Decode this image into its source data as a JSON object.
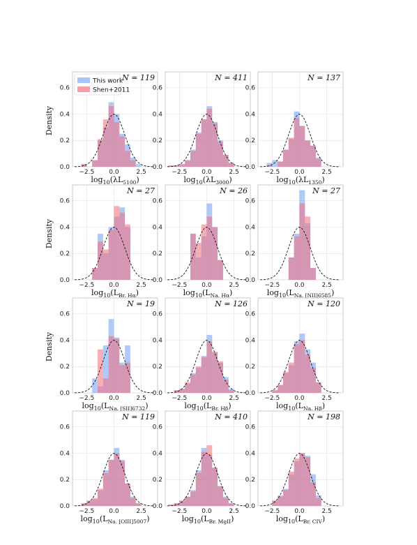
{
  "figure": {
    "ylabel": "Density",
    "legend": {
      "placement": "top-left of first panel",
      "entries": [
        {
          "label": "This work",
          "color": "#7aa6f0"
        },
        {
          "label": "Shen+2011",
          "color": "#f26b7a"
        }
      ]
    },
    "curve_style": "dashed black standard normal"
  },
  "chart_data": [
    {
      "type": "histogram",
      "n_label": "N = 119",
      "xlabel": "log10(λL5100)",
      "xlim": [
        -3.8,
        4
      ],
      "ylim": [
        0,
        0.72
      ],
      "xticks": [
        "−2.5",
        "0.0",
        "2.5"
      ],
      "yticks": [
        "0.0",
        "0.2",
        "0.4",
        "0.6"
      ],
      "bin_edges": [
        -3.0,
        -2.5,
        -2.0,
        -1.5,
        -1.0,
        -0.5,
        0.0,
        0.5,
        1.0,
        1.5,
        2.0,
        2.5
      ],
      "series": [
        {
          "name": "This work",
          "values": [
            0.02,
            0.0,
            0.05,
            0.2,
            0.3,
            0.49,
            0.4,
            0.25,
            0.17,
            0.07,
            0.02
          ]
        },
        {
          "name": "Shen+2011",
          "values": [
            0.02,
            0.0,
            0.05,
            0.21,
            0.36,
            0.46,
            0.34,
            0.23,
            0.12,
            0.05,
            0.0
          ]
        }
      ]
    },
    {
      "type": "histogram",
      "n_label": "N = 411",
      "xlabel": "log10(λL3000)",
      "xlim": [
        -3.8,
        4
      ],
      "ylim": [
        0,
        0.72
      ],
      "xticks": [
        "−2.5",
        "0.0",
        "2.5"
      ],
      "yticks": [
        "0.0",
        "0.2",
        "0.4",
        "0.6"
      ],
      "bin_edges": [
        -3.5,
        -3.0,
        -2.5,
        -2.0,
        -1.5,
        -1.0,
        -0.5,
        0.0,
        0.5,
        1.0,
        1.5,
        2.0,
        2.5
      ],
      "series": [
        {
          "name": "This work",
          "values": [
            0.01,
            0.01,
            0.02,
            0.05,
            0.13,
            0.26,
            0.36,
            0.46,
            0.34,
            0.2,
            0.09,
            0.03
          ]
        },
        {
          "name": "Shen+2011",
          "values": [
            0.01,
            0.01,
            0.02,
            0.05,
            0.12,
            0.25,
            0.36,
            0.44,
            0.33,
            0.19,
            0.09,
            0.03
          ]
        }
      ]
    },
    {
      "type": "histogram",
      "n_label": "N = 137",
      "xlabel": "log10(λL1350)",
      "xlim": [
        -3.8,
        4
      ],
      "ylim": [
        0,
        0.72
      ],
      "xticks": [
        "−2.5",
        "0.0",
        "2.5"
      ],
      "yticks": [
        "0.0",
        "0.2",
        "0.4",
        "0.6"
      ],
      "bin_edges": [
        -3.0,
        -2.5,
        -2.0,
        -1.5,
        -1.0,
        -0.5,
        0.0,
        0.5,
        1.0,
        1.5,
        2.0
      ],
      "series": [
        {
          "name": "This work",
          "values": [
            0.03,
            0.05,
            0.04,
            0.13,
            0.21,
            0.42,
            0.31,
            0.2,
            0.16,
            0.07
          ]
        },
        {
          "name": "Shen+2011",
          "values": [
            0.01,
            0.0,
            0.04,
            0.13,
            0.22,
            0.37,
            0.31,
            0.2,
            0.16,
            0.06
          ]
        }
      ]
    },
    {
      "type": "histogram",
      "n_label": "N = 27",
      "xlabel": "log10(LBr. Hα)",
      "xlim": [
        -3.8,
        4
      ],
      "ylim": [
        0,
        0.72
      ],
      "xticks": [
        "−2.5",
        "0.0",
        "2.5"
      ],
      "yticks": [
        "0.0",
        "0.2",
        "0.4",
        "0.6"
      ],
      "bin_edges": [
        -2.0,
        -1.5,
        -1.0,
        -0.5,
        0.0,
        0.5,
        1.0,
        1.5
      ],
      "series": [
        {
          "name": "This work",
          "values": [
            0.09,
            0.35,
            0.2,
            0.4,
            0.48,
            0.55,
            0.4
          ]
        },
        {
          "name": "Shen+2011",
          "values": [
            0.09,
            0.29,
            0.23,
            0.38,
            0.56,
            0.51,
            0.42
          ]
        }
      ]
    },
    {
      "type": "histogram",
      "n_label": "N = 26",
      "xlabel": "log10(LNa. Hα)",
      "xlim": [
        -3.8,
        4
      ],
      "ylim": [
        0,
        0.72
      ],
      "xticks": [
        "−2.5",
        "0.0",
        "2.5"
      ],
      "yticks": [
        "0.0",
        "0.2",
        "0.4",
        "0.6"
      ],
      "bin_edges": [
        -1.5,
        -1.0,
        -0.5,
        0.0,
        0.5,
        1.0,
        1.5
      ],
      "series": [
        {
          "name": "This work",
          "values": [
            0.35,
            0.17,
            0.33,
            0.58,
            0.4,
            0.15
          ]
        },
        {
          "name": "Shen+2011",
          "values": [
            0.35,
            0.28,
            0.42,
            0.48,
            0.4,
            0.15
          ]
        }
      ]
    },
    {
      "type": "histogram",
      "n_label": "N = 27",
      "xlabel": "log10(LNa. [NII]6585)",
      "xlim": [
        -3.8,
        4
      ],
      "ylim": [
        0,
        0.72
      ],
      "xticks": [
        "−2.5",
        "0.0",
        "2.5"
      ],
      "yticks": [
        "0.0",
        "0.2",
        "0.4",
        "0.6"
      ],
      "bin_edges": [
        -1.0,
        -0.5,
        0.0,
        0.5,
        1.0,
        1.5
      ],
      "series": [
        {
          "name": "This work",
          "values": [
            0.17,
            0.35,
            0.68,
            0.43,
            0.09
          ]
        },
        {
          "name": "Shen+2011",
          "values": [
            0.17,
            0.33,
            0.58,
            0.48,
            0.09
          ]
        }
      ]
    },
    {
      "type": "histogram",
      "n_label": "N = 19",
      "xlabel": "log10(LNa. [SII]6732)",
      "xlim": [
        -3.8,
        4
      ],
      "ylim": [
        0,
        0.72
      ],
      "xticks": [
        "−2.5",
        "0.0",
        "2.5"
      ],
      "yticks": [
        "0.0",
        "0.2",
        "0.4",
        "0.6"
      ],
      "bin_edges": [
        -2.0,
        -1.5,
        -1.0,
        -0.5,
        0.0,
        0.5,
        1.0,
        1.5
      ],
      "series": [
        {
          "name": "This work",
          "values": [
            0.11,
            0.05,
            0.36,
            0.56,
            0.42,
            0.23,
            0.36
          ]
        },
        {
          "name": "Shen+2011",
          "values": [
            0.0,
            0.33,
            0.11,
            0.43,
            0.41,
            0.21,
            0.23
          ]
        }
      ]
    },
    {
      "type": "histogram",
      "n_label": "N = 126",
      "xlabel": "log10(LBr. Hβ)",
      "xlim": [
        -3.8,
        4
      ],
      "ylim": [
        0,
        0.72
      ],
      "xticks": [
        "−2.5",
        "0.0",
        "2.5"
      ],
      "yticks": [
        "0.0",
        "0.2",
        "0.4",
        "0.6"
      ],
      "bin_edges": [
        -3.0,
        -2.5,
        -2.0,
        -1.5,
        -1.0,
        -0.5,
        0.0,
        0.5,
        1.0,
        1.5,
        2.0,
        2.5
      ],
      "series": [
        {
          "name": "This work",
          "values": [
            0.02,
            0.03,
            0.07,
            0.15,
            0.19,
            0.28,
            0.44,
            0.31,
            0.23,
            0.12,
            0.03
          ]
        },
        {
          "name": "Shen+2011",
          "values": [
            0.02,
            0.03,
            0.08,
            0.14,
            0.2,
            0.27,
            0.39,
            0.31,
            0.24,
            0.1,
            0.02
          ]
        }
      ]
    },
    {
      "type": "histogram",
      "n_label": "N = 120",
      "xlabel": "log10(LNa. Hβ)",
      "xlim": [
        -3.8,
        4
      ],
      "ylim": [
        0,
        0.72
      ],
      "xticks": [
        "−2.5",
        "0.0",
        "2.5"
      ],
      "yticks": [
        "0.0",
        "0.2",
        "0.4",
        "0.6"
      ],
      "bin_edges": [
        -2.5,
        -2.0,
        -1.5,
        -1.0,
        -0.5,
        0.0,
        0.5,
        1.0,
        1.5,
        2.0
      ],
      "series": [
        {
          "name": "This work",
          "values": [
            0.02,
            0.06,
            0.15,
            0.21,
            0.39,
            0.45,
            0.33,
            0.23,
            0.08
          ]
        },
        {
          "name": "Shen+2011",
          "values": [
            0.02,
            0.06,
            0.16,
            0.23,
            0.37,
            0.4,
            0.29,
            0.19,
            0.08
          ]
        }
      ]
    },
    {
      "type": "histogram",
      "n_label": "N = 119",
      "xlabel": "log10(LNa. [OIII]5007)",
      "xlim": [
        -3.8,
        4
      ],
      "ylim": [
        0,
        0.72
      ],
      "xticks": [
        "−2.5",
        "0.0",
        "2.5"
      ],
      "yticks": [
        "0.0",
        "0.2",
        "0.4",
        "0.6"
      ],
      "bin_edges": [
        -3.0,
        -2.5,
        -2.0,
        -1.5,
        -1.0,
        -0.5,
        0.0,
        0.5,
        1.0,
        1.5,
        2.0,
        2.5
      ],
      "series": [
        {
          "name": "This work",
          "values": [
            0.02,
            0.04,
            0.05,
            0.12,
            0.27,
            0.35,
            0.44,
            0.35,
            0.17,
            0.07,
            0.02
          ]
        },
        {
          "name": "Shen+2011",
          "values": [
            0.02,
            0.04,
            0.06,
            0.13,
            0.25,
            0.35,
            0.4,
            0.34,
            0.17,
            0.06,
            0.02
          ]
        }
      ]
    },
    {
      "type": "histogram",
      "n_label": "N = 410",
      "xlabel": "log10(LBr. MgII)",
      "xlim": [
        -3.8,
        4
      ],
      "ylim": [
        0,
        0.72
      ],
      "xticks": [
        "−2.5",
        "0.0",
        "2.5"
      ],
      "yticks": [
        "0.0",
        "0.2",
        "0.4",
        "0.6"
      ],
      "bin_edges": [
        -3.5,
        -3.0,
        -2.5,
        -2.0,
        -1.5,
        -1.0,
        -0.5,
        0.0,
        0.5,
        1.0,
        1.5,
        2.0,
        2.5
      ],
      "series": [
        {
          "name": "This work",
          "values": [
            0.01,
            0.02,
            0.04,
            0.07,
            0.12,
            0.27,
            0.44,
            0.39,
            0.29,
            0.15,
            0.07,
            0.02
          ]
        },
        {
          "name": "Shen+2011",
          "values": [
            0.01,
            0.02,
            0.04,
            0.07,
            0.11,
            0.25,
            0.41,
            0.46,
            0.29,
            0.15,
            0.06,
            0.02
          ]
        }
      ]
    },
    {
      "type": "histogram",
      "n_label": "N = 198",
      "xlabel": "log10(LBr. CIV)",
      "xlim": [
        -3.8,
        4
      ],
      "ylim": [
        0,
        0.72
      ],
      "xticks": [
        "−2.5",
        "0.0",
        "2.5"
      ],
      "yticks": [
        "0.0",
        "0.2",
        "0.4",
        "0.6"
      ],
      "bin_edges": [
        -2.5,
        -2.0,
        -1.5,
        -1.0,
        -0.5,
        0.0,
        0.5,
        1.0,
        1.5,
        2.0
      ],
      "series": [
        {
          "name": "This work",
          "values": [
            0.04,
            0.08,
            0.13,
            0.24,
            0.34,
            0.4,
            0.38,
            0.24,
            0.08
          ]
        },
        {
          "name": "Shen+2011",
          "values": [
            0.04,
            0.07,
            0.12,
            0.26,
            0.36,
            0.4,
            0.37,
            0.18,
            0.06
          ]
        }
      ]
    }
  ]
}
